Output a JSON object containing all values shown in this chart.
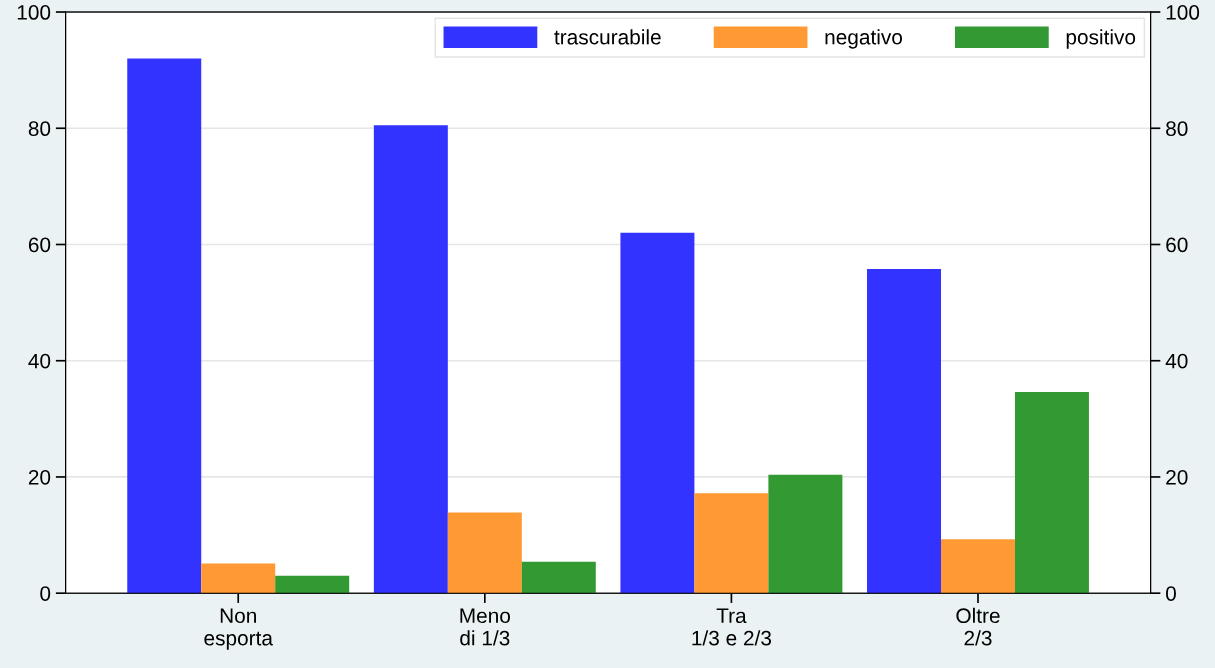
{
  "chart_data": {
    "type": "bar",
    "categories": [
      "Non\nesporta",
      "Meno\ndi 1/3",
      "Tra\n1/3 e 2/3",
      "Oltre\n2/3"
    ],
    "series": [
      {
        "name": "trascurabile",
        "color": "#3333ff",
        "values": [
          92,
          80.5,
          62,
          55.8
        ]
      },
      {
        "name": "negativo",
        "color": "#ff9933",
        "values": [
          5.1,
          13.9,
          17.2,
          9.3
        ]
      },
      {
        "name": "positivo",
        "color": "#339933",
        "values": [
          3,
          5.4,
          20.4,
          34.6
        ]
      }
    ],
    "ylim": [
      0,
      100
    ],
    "yticks": [
      0,
      20,
      40,
      60,
      80,
      100
    ],
    "y2lim": [
      0,
      100
    ],
    "y2ticks": [
      0,
      20,
      40,
      60,
      80,
      100
    ],
    "grid": "y",
    "legend": "top right"
  }
}
